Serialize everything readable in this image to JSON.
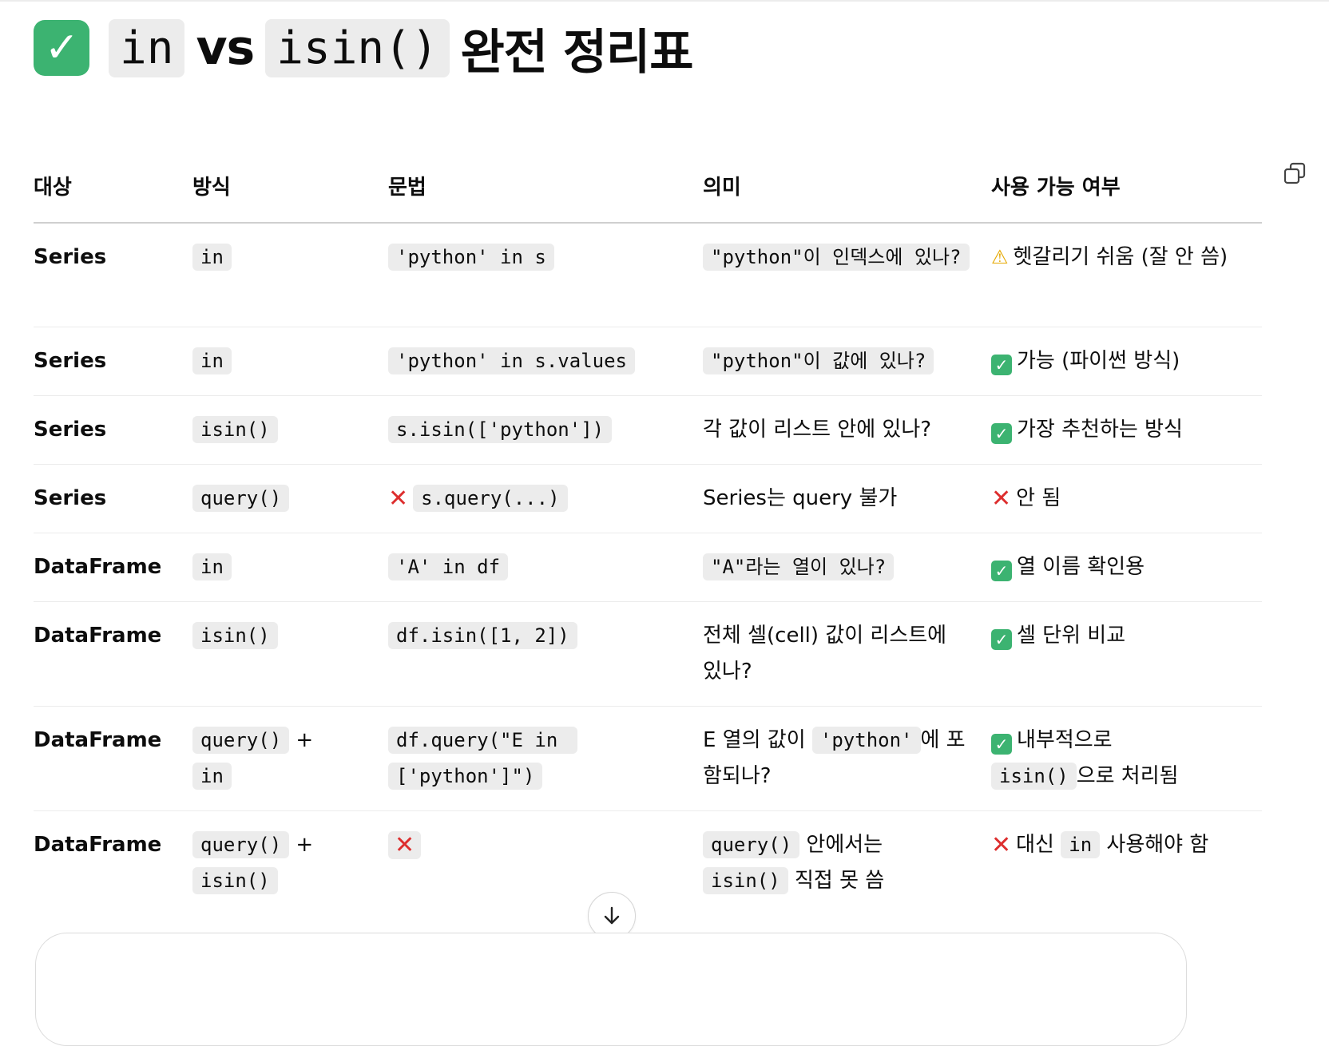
{
  "heading": {
    "emoji": "✓",
    "code1": "in",
    "vs": "vs",
    "code2": "isin()",
    "rest": "완전 정리표"
  },
  "table": {
    "headers": [
      "대상",
      "방식",
      "문법",
      "의미",
      "사용 가능 여부"
    ],
    "rows": [
      {
        "subject": "Series",
        "method": "in",
        "syntax": "'python' in s",
        "meaning": "\"python\"이 인덱스에 있나?",
        "availability": "헷갈리기 쉬움 (잘 안 씀)"
      },
      {
        "subject": "Series",
        "method": "in",
        "syntax": "'python' in s.values",
        "meaning": "\"python\"이 값에 있나?",
        "availability": "가능 (파이썬 방식)"
      },
      {
        "subject": "Series",
        "method": "isin()",
        "syntax": "s.isin(['python'])",
        "meaning": "각 값이 리스트 안에 있나?",
        "availability": "가장 추천하는 방식"
      },
      {
        "subject": "Series",
        "method": "query()",
        "syntax": "s.query(...)",
        "meaning": "Series는 query 불가",
        "availability": "안 됨"
      },
      {
        "subject": "DataFrame",
        "method": "in",
        "syntax": "'A' in df",
        "meaning": "\"A\"라는 열이 있나?",
        "availability": "열 이름 확인용"
      },
      {
        "subject": "DataFrame",
        "method": "isin()",
        "syntax": "df.isin([1, 2])",
        "meaning": "전체 셀(cell) 값이 리스트에 있나?",
        "availability": "셀 단위 비교"
      },
      {
        "subject": "DataFrame",
        "method_code1": "query()",
        "method_plus": "+",
        "method_code2": "in",
        "syntax": "df.query(\"E in ['python']\")",
        "meaning_pre": "E 열의 값이",
        "meaning_code": "'python'",
        "meaning_post": "에 포함되나?",
        "availability_pre": "내부적으로",
        "availability_code": "isin()",
        "availability_post": "으로 처리됨"
      },
      {
        "subject": "DataFrame",
        "method_code1": "query()",
        "method_plus": "+",
        "method_code2": "isin()",
        "syntax_x": "✕",
        "meaning_code1": "query()",
        "meaning_text1": "안에서는",
        "meaning_code2": "isin()",
        "meaning_text2": "직접 못 씀",
        "availability_pre": "대신",
        "availability_code": "in",
        "availability_post": "사용해야 함"
      }
    ]
  },
  "icons": {
    "ok": "✓",
    "x": "✕",
    "warn": "⚠"
  },
  "colors": {
    "ok_green": "#3cb371",
    "x_red": "#dd2e2e",
    "warn_yellow": "#e5a800",
    "code_bg": "#ececec"
  }
}
